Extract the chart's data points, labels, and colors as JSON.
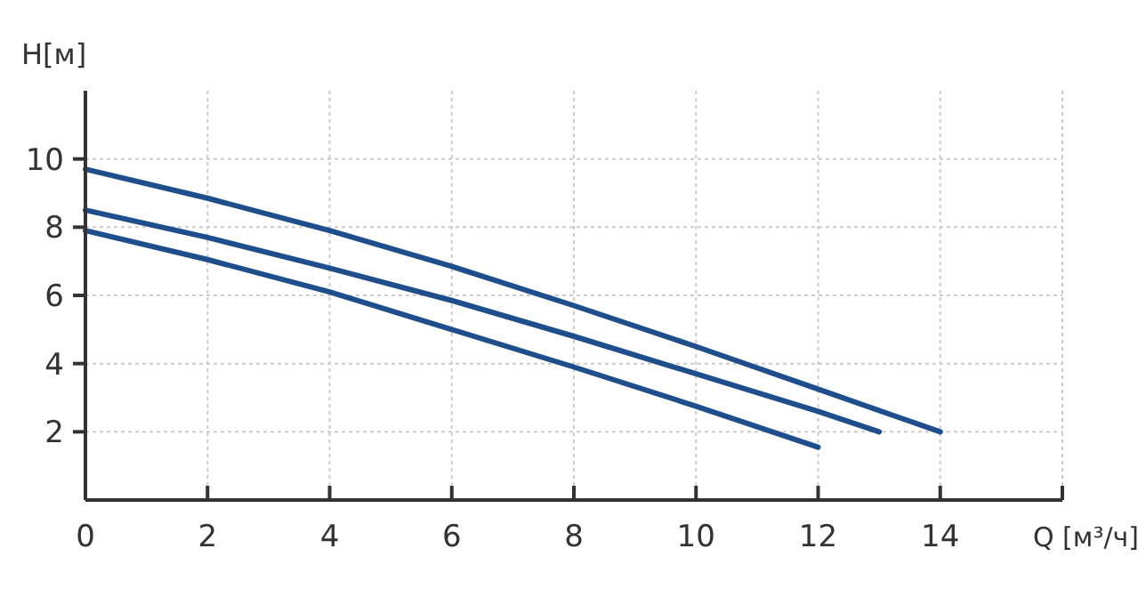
{
  "chart_data": {
    "type": "line",
    "xlabel": "Q [м³/ч]",
    "ylabel": "H[м]",
    "xlim": [
      0,
      16
    ],
    "xticks": [
      0,
      2,
      4,
      6,
      8,
      10,
      12,
      14,
      {
        "value": 16,
        "label": null
      }
    ],
    "ylim": [
      0,
      12
    ],
    "yticks": [
      2,
      4,
      6,
      8,
      10
    ],
    "grid": true,
    "marker": "none",
    "line_style": "solid",
    "series": [
      {
        "color": "#1f4e8c",
        "x": [
          0,
          2,
          4,
          6,
          8,
          10,
          12,
          14
        ],
        "values": [
          9.7,
          8.85,
          7.9,
          6.85,
          5.7,
          4.5,
          3.25,
          2.0
        ]
      },
      {
        "color": "#1f4e8c",
        "x": [
          0,
          2,
          4,
          6,
          8,
          10,
          12,
          13
        ],
        "values": [
          8.5,
          7.7,
          6.8,
          5.85,
          4.8,
          3.7,
          2.6,
          2.0
        ]
      },
      {
        "color": "#1f4e8c",
        "x": [
          0,
          2,
          4,
          6,
          8,
          10,
          12
        ],
        "values": [
          7.9,
          7.05,
          6.1,
          5.0,
          3.9,
          2.75,
          1.55
        ]
      }
    ]
  }
}
